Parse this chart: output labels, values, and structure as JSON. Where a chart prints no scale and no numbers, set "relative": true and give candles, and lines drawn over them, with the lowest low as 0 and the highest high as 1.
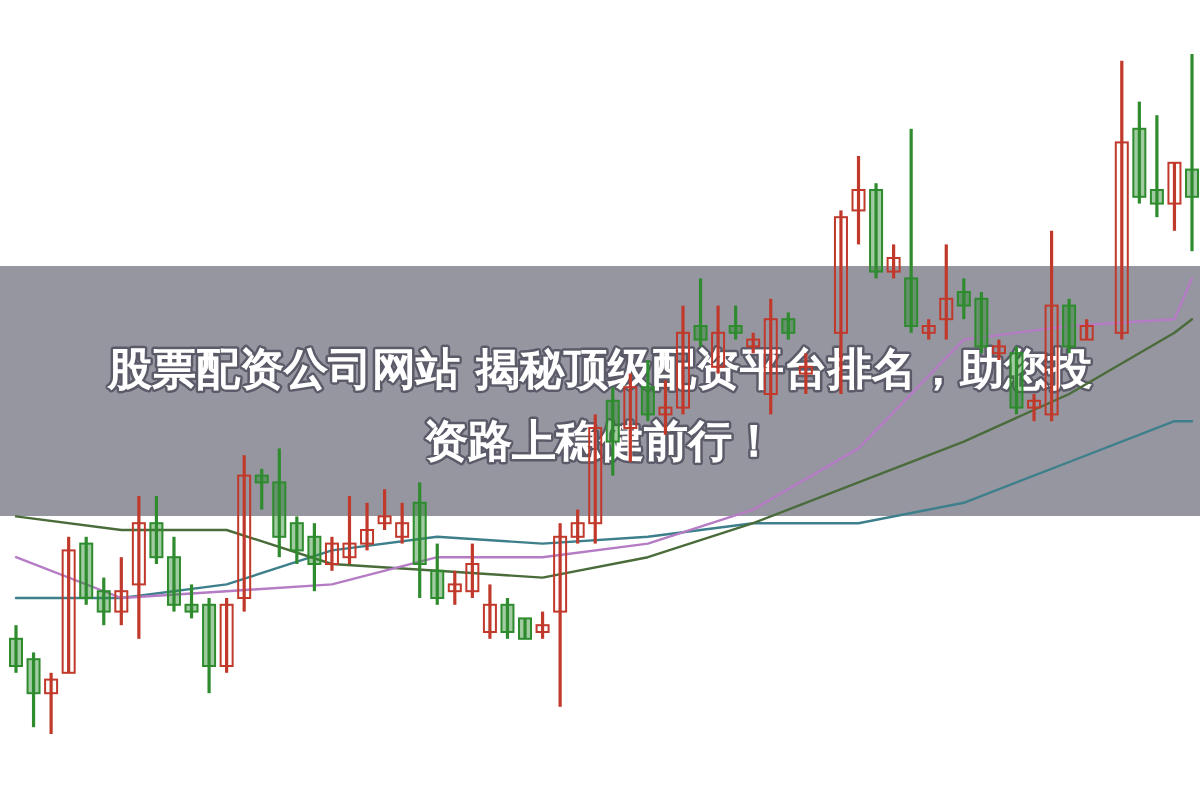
{
  "chart_data": {
    "type": "candlestick",
    "title": "股票配资公司网站 揭秘顶级配资平台排名，助您投资路上稳健前行！",
    "relative": true,
    "categories": [
      null,
      null,
      null,
      null,
      null,
      null,
      null,
      null,
      null,
      null,
      null,
      null,
      null,
      null,
      null,
      null,
      null,
      null,
      null,
      null,
      null,
      null,
      null,
      null,
      null,
      null,
      null,
      null,
      null,
      null,
      null,
      null,
      null,
      null,
      null,
      null,
      null,
      null,
      null,
      null,
      null,
      null,
      null,
      null,
      null,
      null,
      null,
      null,
      null,
      null,
      null,
      null,
      null,
      null,
      null,
      null,
      null,
      null,
      null,
      null,
      null,
      null,
      null,
      null,
      null,
      null,
      null,
      null
    ],
    "ohlc": [
      [
        0.14,
        0.16,
        0.09,
        0.1
      ],
      [
        0.11,
        0.12,
        0.01,
        0.06
      ],
      [
        0.06,
        0.09,
        0,
        0.08
      ],
      [
        0.09,
        0.29,
        0.09,
        0.27
      ],
      [
        0.28,
        0.29,
        0.19,
        0.2
      ],
      [
        0.21,
        0.23,
        0.16,
        0.18
      ],
      [
        0.18,
        0.26,
        0.16,
        0.21
      ],
      [
        0.22,
        0.35,
        0.14,
        0.31
      ],
      [
        0.31,
        0.35,
        0.25,
        0.26
      ],
      [
        0.26,
        0.29,
        0.18,
        0.19
      ],
      [
        0.19,
        0.22,
        0.17,
        0.18
      ],
      [
        0.19,
        0.2,
        0.06,
        0.1
      ],
      [
        0.1,
        0.2,
        0.09,
        0.19
      ],
      [
        0.2,
        0.41,
        0.18,
        0.38
      ],
      [
        0.38,
        0.39,
        0.33,
        0.37
      ],
      [
        0.37,
        0.42,
        0.26,
        0.29
      ],
      [
        0.31,
        0.32,
        0.25,
        0.27
      ],
      [
        0.29,
        0.31,
        0.21,
        0.25
      ],
      [
        0.25,
        0.29,
        0.24,
        0.28
      ],
      [
        0.26,
        0.35,
        0.25,
        0.28
      ],
      [
        0.28,
        0.34,
        0.27,
        0.3
      ],
      [
        0.31,
        0.36,
        0.3,
        0.32
      ],
      [
        0.29,
        0.34,
        0.28,
        0.31
      ],
      [
        0.34,
        0.37,
        0.2,
        0.25
      ],
      [
        0.24,
        0.28,
        0.19,
        0.2
      ],
      [
        0.21,
        0.24,
        0.19,
        0.22
      ],
      [
        0.21,
        0.28,
        0.2,
        0.25
      ],
      [
        0.15,
        0.22,
        0.14,
        0.19
      ],
      [
        0.19,
        0.2,
        0.14,
        0.15
      ],
      [
        0.17,
        0.17,
        0.14,
        0.14
      ],
      [
        0.15,
        0.18,
        0.14,
        0.16
      ],
      [
        0.18,
        0.31,
        0.04,
        0.29
      ],
      [
        0.29,
        0.33,
        0.28,
        0.31
      ],
      [
        0.31,
        0.47,
        0.28,
        0.45
      ],
      [
        0.49,
        0.51,
        0.38,
        0.43
      ],
      [
        0.45,
        0.53,
        0.4,
        0.51
      ],
      [
        0.51,
        0.55,
        0.46,
        0.47
      ],
      [
        0.47,
        0.52,
        0.44,
        0.48
      ],
      [
        0.48,
        0.63,
        0.47,
        0.59
      ],
      [
        0.6,
        0.67,
        0.57,
        0.58
      ],
      [
        0.54,
        0.63,
        0.53,
        0.59
      ],
      [
        0.6,
        0.63,
        0.58,
        0.59
      ],
      [
        0.57,
        0.59,
        0.56,
        0.58
      ],
      [
        0.5,
        0.64,
        0.47,
        0.61
      ],
      [
        0.61,
        0.62,
        0.58,
        0.59
      ],
      [
        0.53,
        0.56,
        0.5,
        0.54
      ],
      null,
      [
        0.59,
        0.77,
        0.5,
        0.76
      ],
      [
        0.77,
        0.85,
        0.72,
        0.8
      ],
      [
        0.8,
        0.81,
        0.67,
        0.68
      ],
      [
        0.68,
        0.72,
        0.67,
        0.7
      ],
      [
        0.67,
        0.89,
        0.59,
        0.6
      ],
      [
        0.59,
        0.61,
        0.58,
        0.6
      ],
      [
        0.61,
        0.72,
        0.58,
        0.64
      ],
      [
        0.65,
        0.67,
        0.61,
        0.63
      ],
      [
        0.64,
        0.65,
        0.56,
        0.57
      ],
      [
        0.56,
        0.58,
        0.55,
        0.57
      ],
      [
        0.56,
        0.57,
        0.47,
        0.48
      ],
      [
        0.48,
        0.5,
        0.46,
        0.49
      ],
      [
        0.47,
        0.74,
        0.46,
        0.63
      ],
      [
        0.63,
        0.64,
        0.56,
        0.57
      ],
      [
        0.58,
        0.61,
        0.58,
        0.6
      ],
      null,
      [
        0.59,
        0.99,
        0.58,
        0.87
      ],
      [
        0.89,
        0.93,
        0.78,
        0.79
      ],
      [
        0.8,
        0.91,
        0.76,
        0.78
      ],
      [
        0.78,
        0.84,
        0.74,
        0.84
      ],
      [
        0.83,
        1,
        0.71,
        0.79
      ]
    ],
    "series": [
      {
        "type": "line",
        "color": "#3d7f8a",
        "values": [
          0.2,
          null,
          null,
          null,
          null,
          null,
          0.2,
          null,
          null,
          null,
          null,
          null,
          0.22,
          null,
          null,
          null,
          null,
          null,
          0.27,
          null,
          null,
          null,
          null,
          null,
          0.29,
          null,
          null,
          null,
          null,
          null,
          0.28,
          null,
          null,
          null,
          null,
          null,
          0.29,
          null,
          null,
          null,
          null,
          null,
          0.31,
          null,
          null,
          null,
          null,
          null,
          0.31,
          null,
          null,
          null,
          null,
          null,
          0.34,
          null,
          null,
          null,
          null,
          null,
          0.4,
          null,
          null,
          null,
          null,
          null,
          0.46,
          0.46
        ]
      },
      {
        "type": "line",
        "color": "#4a6b3a",
        "values": [
          0.32,
          null,
          null,
          null,
          null,
          null,
          0.3,
          null,
          null,
          null,
          null,
          null,
          0.3,
          null,
          null,
          null,
          null,
          null,
          0.25,
          null,
          null,
          null,
          null,
          null,
          0.24,
          null,
          null,
          null,
          null,
          null,
          0.23,
          null,
          null,
          null,
          null,
          null,
          0.26,
          null,
          null,
          null,
          null,
          null,
          0.31,
          null,
          null,
          null,
          null,
          null,
          0.37,
          null,
          null,
          null,
          null,
          null,
          0.43,
          null,
          null,
          null,
          null,
          null,
          0.5,
          null,
          null,
          null,
          null,
          null,
          0.59,
          0.61
        ]
      },
      {
        "type": "line",
        "color": "#b57bc4",
        "values": [
          0.26,
          null,
          null,
          null,
          null,
          null,
          0.2,
          null,
          null,
          null,
          null,
          null,
          0.21,
          null,
          null,
          null,
          null,
          null,
          0.22,
          null,
          null,
          null,
          null,
          null,
          0.26,
          null,
          null,
          null,
          null,
          null,
          0.26,
          null,
          null,
          null,
          null,
          null,
          0.28,
          null,
          null,
          null,
          null,
          null,
          0.33,
          null,
          null,
          null,
          null,
          null,
          0.42,
          null,
          null,
          null,
          null,
          null,
          0.58,
          null,
          null,
          null,
          null,
          null,
          0.6,
          null,
          null,
          null,
          null,
          null,
          0.61,
          0.67
        ]
      }
    ]
  }
}
